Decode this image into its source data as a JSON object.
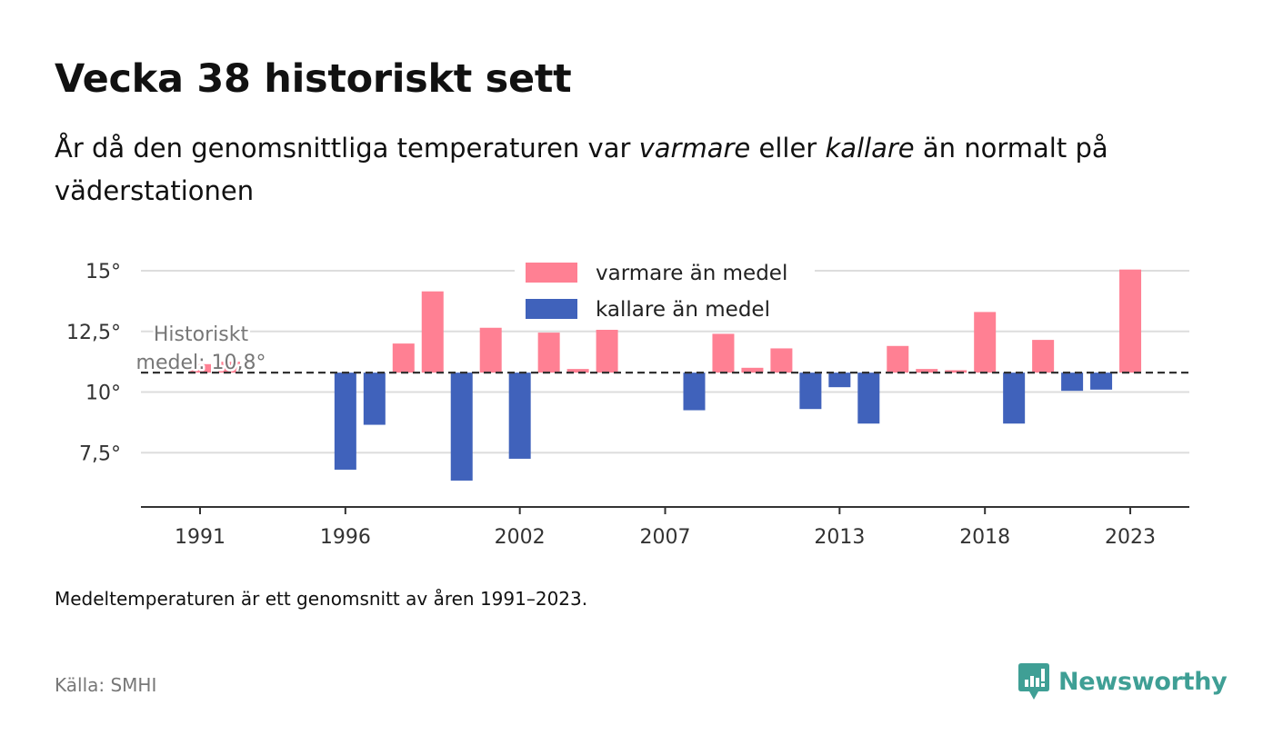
{
  "header": {
    "title": "Vecka 38 historiskt sett",
    "subtitle_pre": "År då den genomsnittliga temperaturen var ",
    "subtitle_warm": "varmare",
    "subtitle_mid": " eller ",
    "subtitle_cold": "kallare",
    "subtitle_post": " än normalt på väderstationen"
  },
  "colors": {
    "warm": "#ff8093",
    "cold": "#4062bb",
    "grid": "#dddddd",
    "axis": "#333333",
    "avg_line": "#333333",
    "brand": "#3f9f95"
  },
  "chart_data": {
    "type": "bar",
    "x": [
      1991,
      1992,
      1993,
      1994,
      1995,
      1996,
      1997,
      1998,
      1999,
      2000,
      2001,
      2002,
      2003,
      2004,
      2005,
      2006,
      2007,
      2008,
      2009,
      2010,
      2011,
      2012,
      2013,
      2014,
      2015,
      2016,
      2017,
      2018,
      2019,
      2020,
      2021,
      2022,
      2023
    ],
    "values": [
      11.15,
      11.25,
      null,
      null,
      null,
      6.8,
      8.65,
      12.0,
      14.15,
      6.35,
      12.65,
      7.25,
      12.45,
      10.95,
      12.6,
      null,
      null,
      9.25,
      12.4,
      11.0,
      11.8,
      9.3,
      10.2,
      8.7,
      11.9,
      10.95,
      10.9,
      13.3,
      8.7,
      12.15,
      10.05,
      10.1,
      15.05
    ],
    "baseline": 10.8,
    "baseline_label_line1": "Historiskt",
    "baseline_label_line2": "medel: 10,8°",
    "series": [
      {
        "name": "varmare än medel",
        "condition": "above_baseline"
      },
      {
        "name": "kallare än medel",
        "condition": "below_baseline"
      }
    ],
    "x_ticks": [
      1991,
      1996,
      2002,
      2007,
      2013,
      2018,
      2023
    ],
    "y_ticks": [
      {
        "value": 7.5,
        "label": "7,5°"
      },
      {
        "value": 10,
        "label": "10°"
      },
      {
        "value": 12.5,
        "label": "12,5°"
      },
      {
        "value": 15,
        "label": "15°"
      }
    ],
    "ylim": [
      5.3,
      15.3
    ],
    "grid": true,
    "legend": "top-center"
  },
  "footnote": "Medeltemperaturen är ett genomsnitt av åren 1991–2023.",
  "source": "Källa: SMHI",
  "brand": {
    "name": "Newsworthy",
    "icon": "newsworthy-logo-icon"
  }
}
